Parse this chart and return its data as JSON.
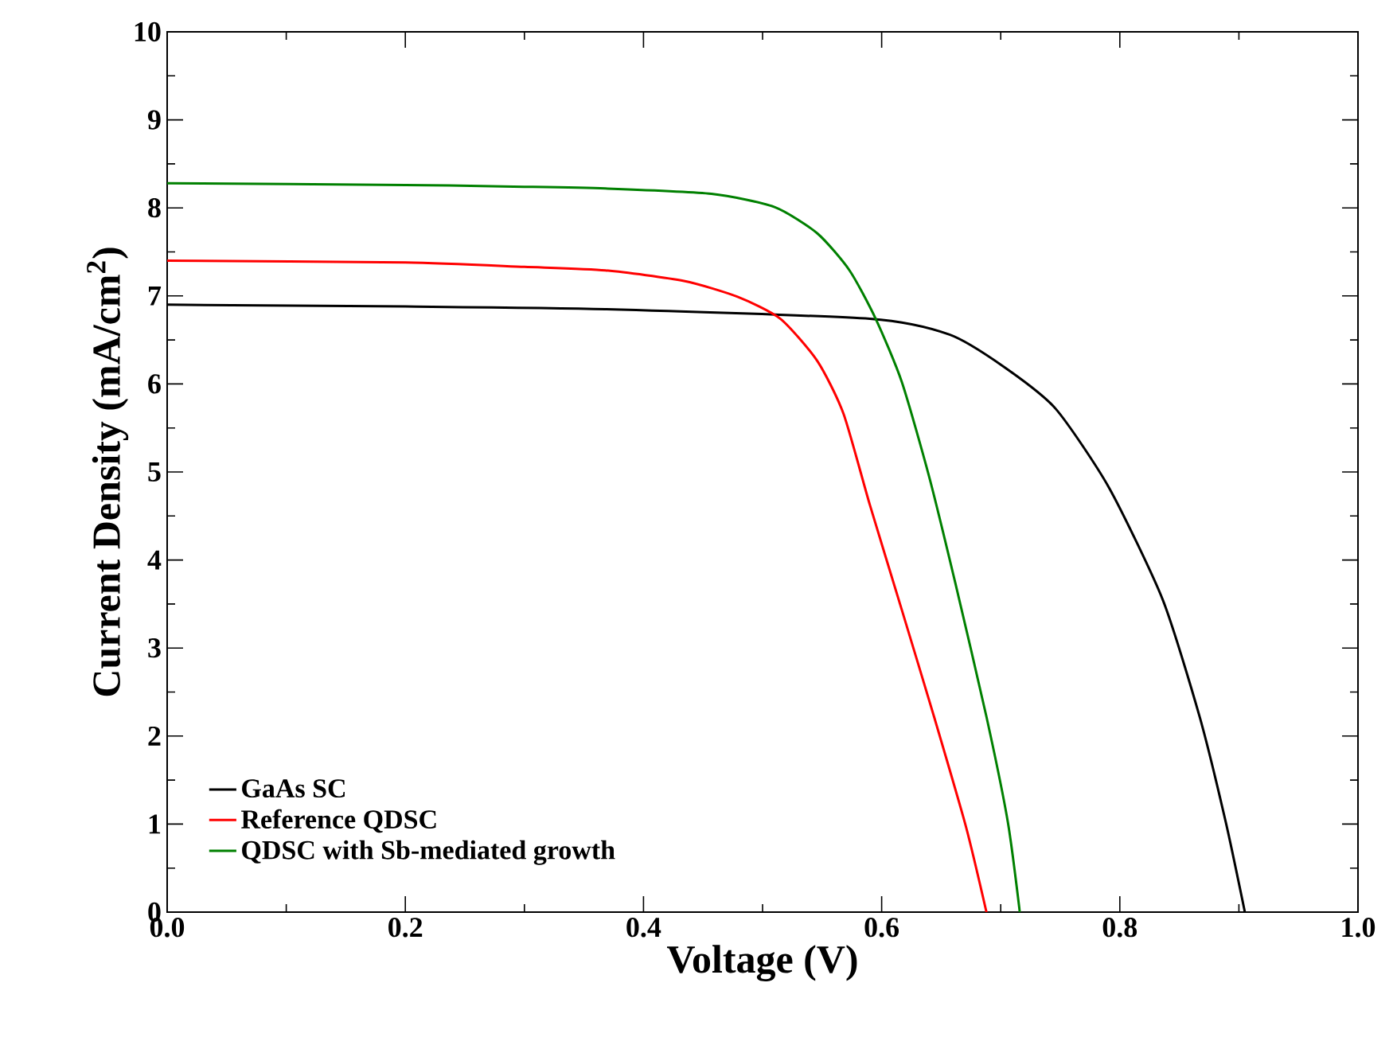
{
  "chart_data": {
    "type": "line",
    "xlabel": "Voltage (V)",
    "ylabel": "Current Density (mA/cm$^{2}$)",
    "xlim": [
      0,
      1
    ],
    "ylim": [
      0,
      10
    ],
    "xticks": [
      {
        "value": 0,
        "label": "0.0"
      },
      0.2,
      0.4,
      0.6,
      0.8,
      {
        "value": 1,
        "label": "1.0"
      }
    ],
    "yticks": [
      0,
      1,
      2,
      3,
      4,
      5,
      6,
      7,
      8,
      9,
      10
    ],
    "legend": "bottom left",
    "grid": false,
    "marker": "none",
    "line_style": "solid",
    "series": [
      {
        "name": "GaAs SC",
        "color": "#000000",
        "x": [
          0,
          0.2,
          0.368,
          0.59,
          0.657,
          0.702,
          0.746,
          0.791,
          0.836,
          0.867,
          0.889,
          0.905
        ],
        "values": [
          6.9,
          6.88,
          6.85,
          6.74,
          6.56,
          6.2,
          5.72,
          4.82,
          3.55,
          2.22,
          1.02,
          0
        ]
      },
      {
        "name": "Reference QDSC",
        "color": "#ff0000",
        "x": [
          0,
          0.2,
          0.3,
          0.368,
          0.434,
          0.479,
          0.515,
          0.546,
          0.568,
          0.59,
          0.617,
          0.644,
          0.671,
          0.688
        ],
        "values": [
          7.4,
          7.38,
          7.33,
          7.29,
          7.17,
          6.99,
          6.74,
          6.26,
          5.66,
          4.63,
          3.43,
          2.22,
          0.96,
          0
        ]
      },
      {
        "name": "QDSC with Sb-mediated growth",
        "color": "#008000",
        "x": [
          0,
          0.2,
          0.3,
          0.368,
          0.457,
          0.51,
          0.546,
          0.573,
          0.595,
          0.617,
          0.64,
          0.662,
          0.688,
          0.706,
          0.716
        ],
        "values": [
          8.28,
          8.26,
          8.24,
          8.22,
          8.16,
          8.01,
          7.71,
          7.29,
          6.74,
          6.02,
          4.94,
          3.73,
          2.22,
          1.02,
          0
        ]
      }
    ]
  }
}
